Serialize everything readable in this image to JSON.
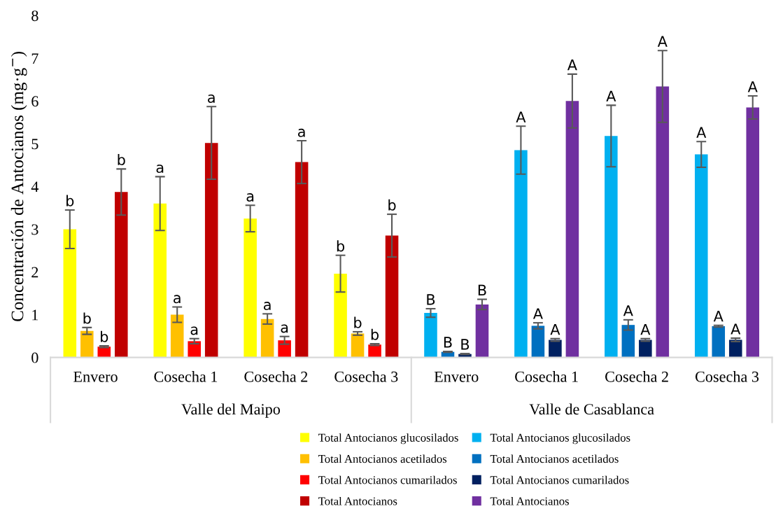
{
  "chart_data": {
    "type": "bar",
    "ylabel": "Concentración de Antocianos (mg·g$^{−}$)",
    "categories": [
      "Envero",
      "Cosecha 1",
      "Cosecha 2",
      "Cosecha 3",
      "Envero",
      "Cosecha 1",
      "Cosecha 2",
      "Cosecha 3"
    ],
    "annotations": [
      "Valle del Maipo",
      "Valle de Casablanca"
    ],
    "ylim": [
      0,
      8
    ],
    "yticks": [
      0,
      1,
      2,
      3,
      4,
      5,
      6,
      7,
      8
    ],
    "grid": false,
    "legend": "bottom",
    "series": [
      {
        "name": "Total Antocianos glucosilados",
        "color": "#ffff00",
        "values": [
          3.0,
          3.6,
          3.25,
          1.96,
          null,
          null,
          null,
          null
        ],
        "errors": [
          0.45,
          0.63,
          0.31,
          0.43,
          null,
          null,
          null,
          null
        ],
        "value_labels": [
          "b",
          "a",
          "a",
          "b",
          null,
          null,
          null,
          null
        ]
      },
      {
        "name": "Total Antocianos acetilados",
        "color": "#ffc000",
        "values": [
          0.62,
          1.0,
          0.9,
          0.56,
          null,
          null,
          null,
          null
        ],
        "errors": [
          0.08,
          0.18,
          0.12,
          0.04,
          null,
          null,
          null,
          null
        ],
        "value_labels": [
          "b",
          "a",
          "a",
          "b",
          null,
          null,
          null,
          null
        ]
      },
      {
        "name": "Total Antocianos cumarilados",
        "color": "#ff0000",
        "values": [
          0.25,
          0.38,
          0.4,
          0.3,
          null,
          null,
          null,
          null
        ],
        "errors": [
          0.02,
          0.06,
          0.09,
          0.02,
          null,
          null,
          null,
          null
        ],
        "value_labels": [
          "b",
          "a",
          "a",
          "b",
          null,
          null,
          null,
          null
        ]
      },
      {
        "name": "Total Antocianos",
        "color": "#c00000",
        "values": [
          3.87,
          5.02,
          4.57,
          2.85,
          null,
          null,
          null,
          null
        ],
        "errors": [
          0.54,
          0.85,
          0.5,
          0.5,
          null,
          null,
          null,
          null
        ],
        "value_labels": [
          "b",
          "a",
          "a",
          "b",
          null,
          null,
          null,
          null
        ]
      },
      {
        "name": "Total Antocianos glucosilados",
        "color": "#00b0f0",
        "values": [
          null,
          null,
          null,
          null,
          1.04,
          4.85,
          5.18,
          4.75
        ],
        "errors": [
          null,
          null,
          null,
          null,
          0.1,
          0.56,
          0.72,
          0.3
        ],
        "value_labels": [
          null,
          null,
          null,
          null,
          "B",
          "A",
          "A",
          "A"
        ]
      },
      {
        "name": "Total Antocianos acetilados",
        "color": "#0070c0",
        "values": [
          null,
          null,
          null,
          null,
          0.13,
          0.74,
          0.76,
          0.73
        ],
        "errors": [
          null,
          null,
          null,
          null,
          0.01,
          0.07,
          0.12,
          0.02
        ],
        "value_labels": [
          null,
          null,
          null,
          null,
          "B",
          "A",
          "A",
          "A"
        ]
      },
      {
        "name": "Total Antocianos cumarilados",
        "color": "#002060",
        "values": [
          null,
          null,
          null,
          null,
          0.08,
          0.41,
          0.41,
          0.41
        ],
        "errors": [
          null,
          null,
          null,
          null,
          0.01,
          0.03,
          0.03,
          0.04
        ],
        "value_labels": [
          null,
          null,
          null,
          null,
          "B",
          "A",
          "A",
          "A"
        ]
      },
      {
        "name": "Total Antocianos",
        "color": "#7030a0",
        "values": [
          null,
          null,
          null,
          null,
          1.24,
          6.0,
          6.34,
          5.85
        ],
        "errors": [
          null,
          null,
          null,
          null,
          0.12,
          0.63,
          0.84,
          0.27
        ],
        "value_labels": [
          null,
          null,
          null,
          null,
          "B",
          "A",
          "A",
          "A"
        ]
      }
    ]
  }
}
